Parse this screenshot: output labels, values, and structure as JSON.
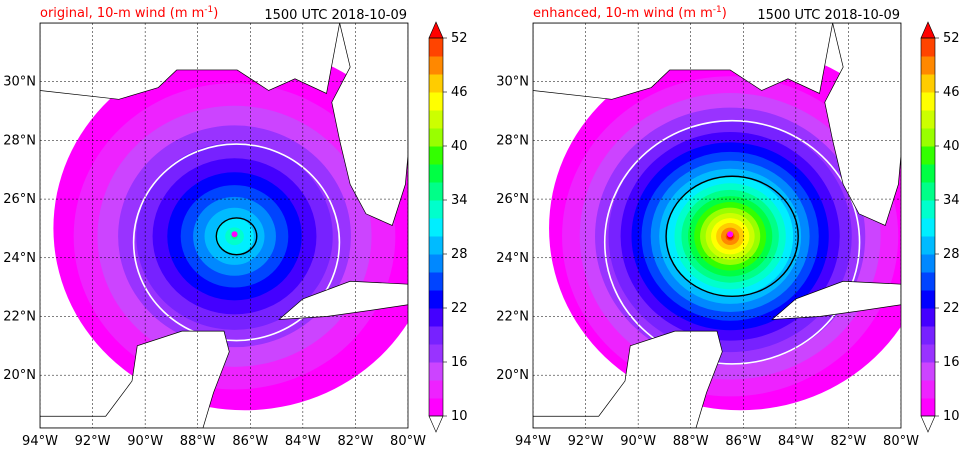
{
  "chart_data": [
    {
      "type": "heatmap",
      "title_left": "original, 10-m wind (m m",
      "title_left_sup": "-1",
      "title_left_close": ")",
      "title_right": "1500 UTC 2018-10-09",
      "xticks": [
        "94°W",
        "92°W",
        "90°W",
        "88°W",
        "86°W",
        "84°W",
        "82°W",
        "80°W"
      ],
      "yticks": [
        "30°N",
        "28°N",
        "26°N",
        "24°N",
        "22°N",
        "20°N"
      ],
      "xlim": [
        -94,
        -80
      ],
      "ylim": [
        18.2,
        32.0
      ],
      "grid": true,
      "storm_center": [
        -86.6,
        24.8
      ],
      "max_wind": 34,
      "colorbar": {
        "levels": [
          10,
          12,
          14,
          16,
          18,
          20,
          22,
          24,
          26,
          28,
          30,
          32,
          34,
          36,
          38,
          40,
          42,
          44,
          46,
          48,
          50,
          52
        ],
        "tick_labels": [
          "10",
          "16",
          "22",
          "28",
          "34",
          "40",
          "46",
          "52"
        ]
      }
    },
    {
      "type": "heatmap",
      "title_left": "enhanced, 10-m wind (m m",
      "title_left_sup": "-1",
      "title_left_close": ")",
      "title_right": "1500 UTC 2018-10-09",
      "xticks": [
        "94°W",
        "92°W",
        "90°W",
        "88°W",
        "86°W",
        "84°W",
        "82°W",
        "80°W"
      ],
      "yticks": [
        "30°N",
        "28°N",
        "26°N",
        "24°N",
        "22°N",
        "20°N"
      ],
      "xlim": [
        -94,
        -80
      ],
      "ylim": [
        18.2,
        32.0
      ],
      "grid": true,
      "storm_center": [
        -86.5,
        24.8
      ],
      "max_wind": 52,
      "colorbar": {
        "levels": [
          10,
          12,
          14,
          16,
          18,
          20,
          22,
          24,
          26,
          28,
          30,
          32,
          34,
          36,
          38,
          40,
          42,
          44,
          46,
          48,
          50,
          52
        ],
        "tick_labels": [
          "10",
          "16",
          "22",
          "28",
          "34",
          "40",
          "46",
          "52"
        ]
      }
    }
  ],
  "colors": {
    "scale": [
      "#ff00ff",
      "#ee22ff",
      "#cc44ff",
      "#9933ff",
      "#7722ff",
      "#4400ff",
      "#0000ff",
      "#0044ff",
      "#0088ff",
      "#00bbff",
      "#00eeff",
      "#00ffcc",
      "#00ff88",
      "#00ff44",
      "#33ff00",
      "#99ff00",
      "#ccff00",
      "#ffff00",
      "#ffcc00",
      "#ff8800",
      "#ff4400",
      "#ff0000"
    ],
    "title_left": "#ff0000",
    "contour_white": "#ffffff",
    "contour_black": "#000000",
    "coast": "#000000"
  }
}
